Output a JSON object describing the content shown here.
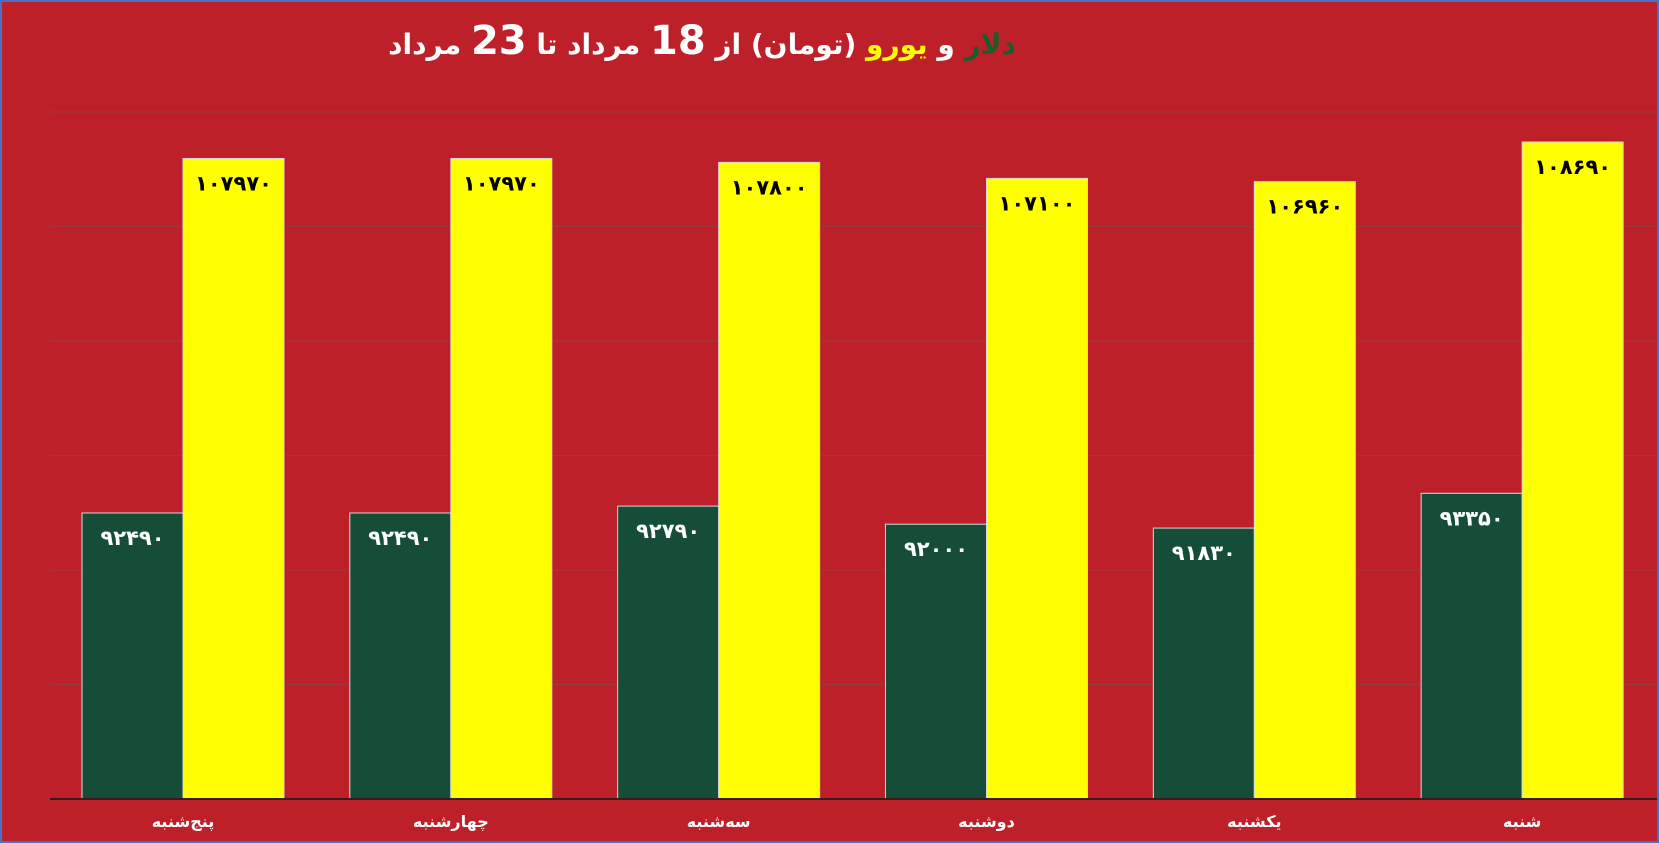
{
  "colors": {
    "background": "#bd2029",
    "frame": "#4a6fc4",
    "grid": "#9a3a3f",
    "axis": "#3a1a1a",
    "dollar": "#154d38",
    "euro": "#ffff00",
    "title_main": "#ffffff",
    "title_dollar": "#1a5c2a",
    "title_euro": "#ffff00",
    "dollar_label": "#ffffff",
    "euro_label": "#000000"
  },
  "title": {
    "part_dollar": "دلار",
    "part_and": " و ",
    "part_euro": "یورو",
    "part_rest": " (تومان) از ",
    "num_from": "18",
    "part_month1": " مرداد تا ",
    "num_to": "23",
    "part_month2": " مرداد"
  },
  "chart_data": {
    "type": "bar",
    "categories": [
      "پنج‌شنبه",
      "چهارشنبه",
      "سه‌شنبه",
      "دوشنبه",
      "یکشنبه",
      "شنبه"
    ],
    "series": [
      {
        "color": "#154d38",
        "values": [
          92490,
          92490,
          92790,
          92000,
          91830,
          93350
        ],
        "labels": [
          "۹۲۴۹۰",
          "۹۲۴۹۰",
          "۹۲۷۹۰",
          "۹۲۰۰۰",
          "۹۱۸۳۰",
          "۹۳۳۵۰"
        ]
      },
      {
        "color": "#ffff00",
        "values": [
          107970,
          107970,
          107800,
          107100,
          106960,
          108690
        ],
        "labels": [
          "۱۰۷۹۷۰",
          "۱۰۷۹۷۰",
          "۱۰۷۸۰۰",
          "۱۰۷۱۰۰",
          "۱۰۶۹۶۰",
          "۱۰۸۶۹۰"
        ]
      }
    ],
    "ylim": [
      80000,
      110000
    ],
    "grid": true,
    "legend": "none"
  }
}
